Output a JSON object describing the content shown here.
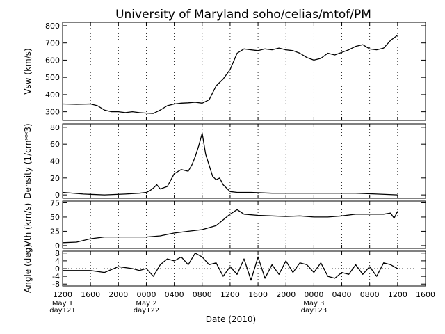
{
  "chart_data": {
    "type": "line",
    "title": "University of Maryland  soho/celias/mtof/PM",
    "xlabel": "Date (2010)",
    "x_ticks": [
      "1200",
      "1600",
      "2000",
      "0000",
      "0400",
      "0800",
      "1200",
      "1600",
      "2000",
      "0000",
      "0400",
      "0800",
      "1200",
      "1600"
    ],
    "x_range_hours": [
      0,
      48
    ],
    "date_labels": [
      {
        "tick": "1200",
        "lines": [
          "May 1",
          "day121"
        ]
      },
      {
        "tick": "0000",
        "lines": [
          "May 2",
          "day122"
        ]
      },
      {
        "tick": "0000",
        "lines": [
          "May 3",
          "day123"
        ]
      }
    ],
    "grid": "vertical dotted lines at each x tick",
    "panels": [
      {
        "ylabel": "Vsw (km/s)",
        "ylim": [
          250,
          820
        ],
        "yticks": [
          "300",
          "400",
          "500",
          "600",
          "700",
          "800"
        ],
        "zero_line": false,
        "series": [
          {
            "x": [
              0,
              2,
              4,
              5,
              6,
              7,
              8,
              9,
              10,
              11,
              12,
              13,
              14,
              15,
              16,
              17,
              18,
              19,
              20,
              21,
              22,
              23,
              24,
              25,
              26,
              27,
              28,
              29,
              30,
              31,
              32,
              33,
              34,
              35,
              36,
              37,
              38,
              39,
              40,
              41,
              42,
              43,
              44,
              45,
              46,
              47,
              48
            ],
            "values": [
              345,
              343,
              345,
              335,
              310,
              300,
              300,
              295,
              300,
              295,
              292,
              290,
              310,
              335,
              345,
              350,
              352,
              355,
              350,
              370,
              450,
              490,
              545,
              640,
              665,
              660,
              655,
              665,
              660,
              670,
              660,
              655,
              640,
              615,
              600,
              610,
              640,
              630,
              645,
              660,
              680,
              690,
              665,
              660,
              670,
              715,
              745
            ]
          }
        ]
      },
      {
        "ylabel": "Density (1/cm**3)",
        "ylim": [
          -4,
          84
        ],
        "yticks": [
          "0",
          "20",
          "40",
          "60",
          "80"
        ],
        "zero_line": false,
        "series": [
          {
            "x": [
              0,
              3,
              6,
              9,
              11,
              12,
              12.5,
              13,
              13.5,
              14,
              15,
              16,
              17,
              18,
              18.5,
              19,
              19.5,
              20,
              20.5,
              21,
              21.5,
              22,
              22.5,
              23,
              24,
              25,
              27,
              30,
              33,
              36,
              39,
              42,
              45,
              48
            ],
            "values": [
              3,
              1,
              0,
              1,
              2,
              3,
              5,
              8,
              12,
              7,
              10,
              25,
              30,
              28,
              35,
              45,
              58,
              73,
              48,
              35,
              22,
              18,
              20,
              12,
              4,
              3,
              3,
              2,
              2,
              2,
              2,
              2,
              1,
              0
            ]
          }
        ]
      },
      {
        "ylabel": "Vth (km/s)",
        "ylim": [
          -5,
          78
        ],
        "yticks": [
          "0",
          "25",
          "50",
          "75"
        ],
        "zero_line": false,
        "series": [
          {
            "x": [
              0,
              2,
              4,
              6,
              8,
              10,
              12,
              14,
              16,
              18,
              20,
              22,
              23,
              24,
              25,
              26,
              28,
              30,
              32,
              34,
              36,
              38,
              40,
              42,
              44,
              46,
              47,
              47.5,
              48
            ],
            "values": [
              5,
              6,
              12,
              15,
              15,
              15,
              15,
              17,
              22,
              25,
              28,
              35,
              45,
              55,
              63,
              55,
              53,
              52,
              51,
              52,
              50,
              50,
              52,
              55,
              55,
              55,
              57,
              48,
              60
            ]
          }
        ]
      },
      {
        "ylabel": "Angle (deg)",
        "ylim": [
          -9,
          9
        ],
        "yticks": [
          "8",
          "4",
          "0",
          "-4",
          "-8"
        ],
        "zero_line": true,
        "series": [
          {
            "x": [
              0,
              2,
              4,
              6,
              8,
              10,
              11,
              12,
              13,
              14,
              15,
              16,
              17,
              18,
              19,
              20,
              21,
              22,
              23,
              24,
              25,
              26,
              27,
              28,
              29,
              30,
              31,
              32,
              33,
              34,
              35,
              36,
              37,
              38,
              39,
              40,
              41,
              42,
              43,
              44,
              45,
              46,
              47,
              48
            ],
            "values": [
              -1,
              -1,
              -1,
              -2,
              1,
              0,
              -1,
              0,
              -4,
              2,
              5,
              4,
              6,
              2,
              8,
              6,
              2,
              3,
              -4,
              1,
              -3,
              5,
              -6,
              6,
              -5,
              2,
              -3,
              4,
              -2,
              3,
              2,
              -2,
              3,
              -4,
              -5,
              -2,
              -3,
              2,
              -3,
              1,
              -4,
              3,
              2,
              0
            ]
          }
        ]
      }
    ]
  }
}
